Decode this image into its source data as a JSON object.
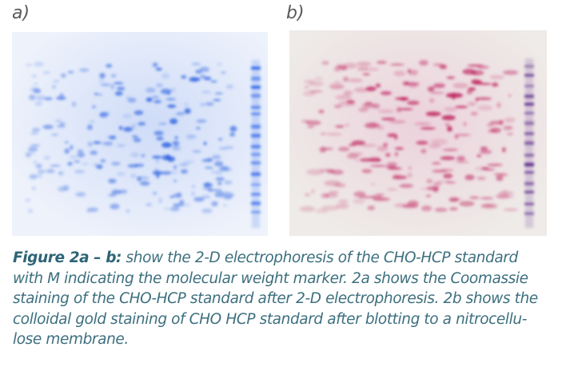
{
  "panels": [
    {
      "label": "a)"
    },
    {
      "label": "b)"
    }
  ],
  "caption": {
    "label": "Figure 2a – b:",
    "lines": [
      " show the 2-D electrophoresis of the CHO-HCP standard",
      "with M indicating the molecular weight marker. 2a shows the Coomassie",
      "staining of the CHO-HCP standard after 2-D electrophoresis. 2b shows the",
      "colloidal gold staining of CHO HCP standard after blotting to a nitrocellu-",
      "lose membrane."
    ]
  }
}
